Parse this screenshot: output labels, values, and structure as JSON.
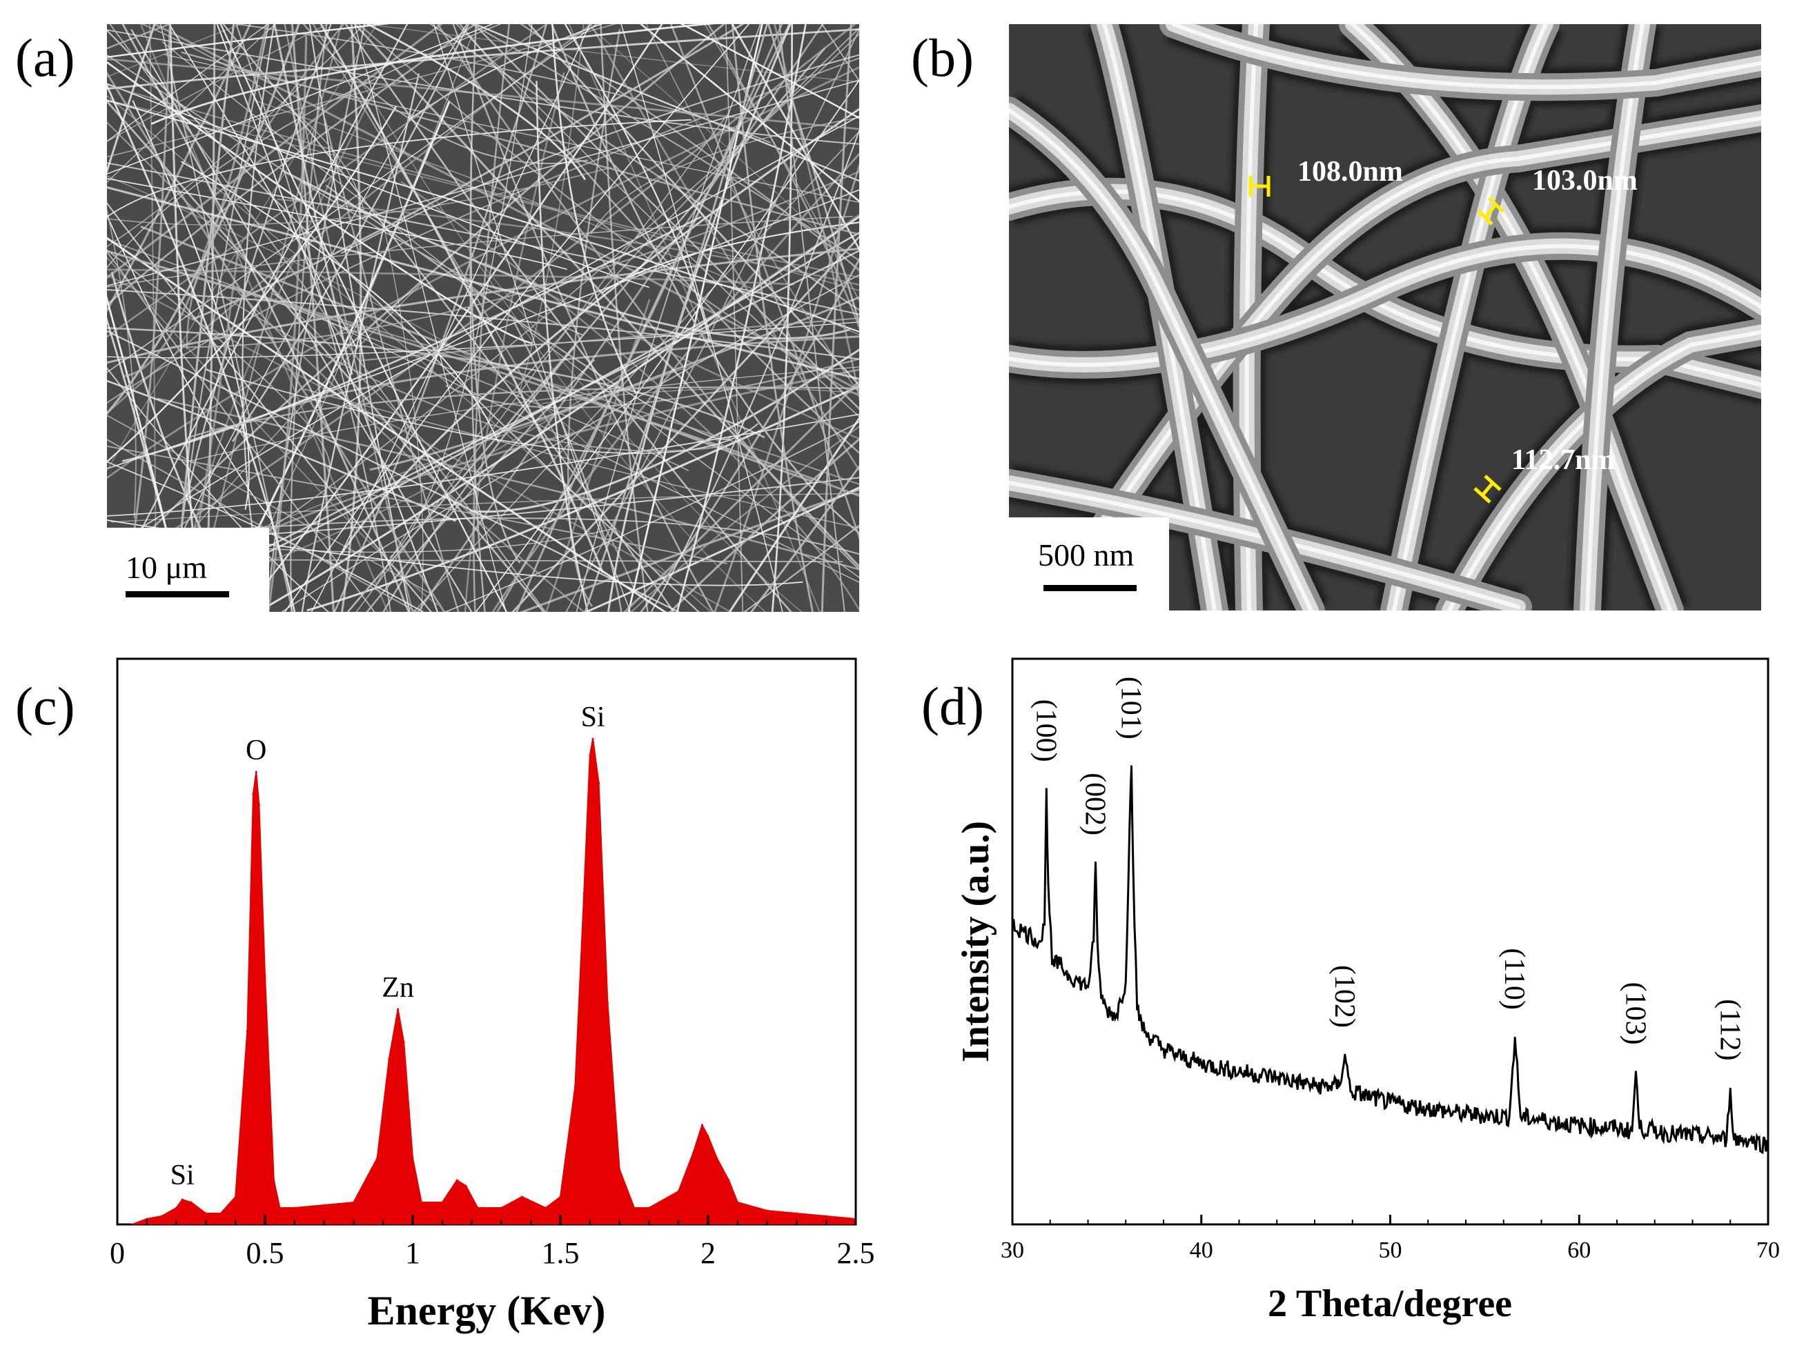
{
  "panels": {
    "a": {
      "label": "(a)",
      "scale_bar": "10 μm"
    },
    "b": {
      "label": "(b)",
      "scale_bar": "500 nm",
      "measurements": [
        "108.0nm",
        "103.0nm",
        "112.7nm"
      ]
    },
    "c": {
      "label": "(c)"
    },
    "d": {
      "label": "(d)"
    }
  },
  "colors": {
    "eds": "#e40000",
    "xrd": "#000000",
    "marker": "#ffee00"
  },
  "chart_data": [
    {
      "id": "c",
      "type": "area",
      "title": "",
      "xlabel": "Energy (Kev)",
      "ylabel": "",
      "xlim": [
        0,
        2.5
      ],
      "ylim": [
        0,
        1.0
      ],
      "xticks": [
        0,
        0.5,
        1,
        1.5,
        2,
        2.5
      ],
      "xtick_labels": [
        "0",
        "0.5",
        "1",
        "1.5",
        "2",
        "2.5"
      ],
      "peaks": [
        {
          "label": "Si",
          "x": 0.22,
          "y": 0.05
        },
        {
          "label": "O",
          "x": 0.47,
          "y": 0.82
        },
        {
          "label": "Zn",
          "x": 0.95,
          "y": 0.39
        },
        {
          "label": "Si",
          "x": 1.61,
          "y": 0.88
        }
      ],
      "x": [
        0.05,
        0.1,
        0.15,
        0.2,
        0.22,
        0.25,
        0.3,
        0.35,
        0.4,
        0.44,
        0.46,
        0.47,
        0.48,
        0.5,
        0.53,
        0.55,
        0.6,
        0.7,
        0.8,
        0.88,
        0.92,
        0.95,
        0.97,
        1.0,
        1.03,
        1.1,
        1.15,
        1.18,
        1.22,
        1.3,
        1.37,
        1.45,
        1.5,
        1.55,
        1.58,
        1.6,
        1.61,
        1.63,
        1.66,
        1.7,
        1.75,
        1.8,
        1.9,
        1.95,
        1.98,
        2.0,
        2.03,
        2.07,
        2.1,
        2.2,
        2.3,
        2.4,
        2.5
      ],
      "y": [
        0.0,
        0.01,
        0.015,
        0.03,
        0.045,
        0.04,
        0.02,
        0.02,
        0.05,
        0.35,
        0.78,
        0.82,
        0.76,
        0.45,
        0.08,
        0.03,
        0.03,
        0.035,
        0.04,
        0.12,
        0.3,
        0.39,
        0.33,
        0.12,
        0.04,
        0.04,
        0.08,
        0.07,
        0.03,
        0.03,
        0.05,
        0.03,
        0.05,
        0.25,
        0.6,
        0.85,
        0.88,
        0.8,
        0.4,
        0.1,
        0.03,
        0.03,
        0.06,
        0.13,
        0.18,
        0.16,
        0.12,
        0.08,
        0.04,
        0.025,
        0.02,
        0.015,
        0.01
      ]
    },
    {
      "id": "d",
      "type": "line",
      "title": "",
      "xlabel": "2 Theta/degree",
      "ylabel": "Intensity (a.u.)",
      "xlim": [
        30,
        70
      ],
      "ylim": [
        0,
        100
      ],
      "xticks": [
        30,
        40,
        50,
        60,
        70
      ],
      "xtick_labels": [
        "30",
        "40",
        "50",
        "60",
        "70"
      ],
      "peak_labels": [
        {
          "label": "(100)",
          "x": 31.8,
          "y": 77
        },
        {
          "label": "(002)",
          "x": 34.4,
          "y": 64
        },
        {
          "label": "(101)",
          "x": 36.3,
          "y": 81
        },
        {
          "label": "(102)",
          "x": 47.6,
          "y": 30
        },
        {
          "label": "(110)",
          "x": 56.6,
          "y": 33
        },
        {
          "label": "(103)",
          "x": 63.0,
          "y": 27
        },
        {
          "label": "(112)",
          "x": 68.0,
          "y": 24
        }
      ],
      "x": [
        30.0,
        30.5,
        31.0,
        31.5,
        31.7,
        31.8,
        31.9,
        32.1,
        32.5,
        33.0,
        33.5,
        34.0,
        34.3,
        34.4,
        34.5,
        34.7,
        35.0,
        35.5,
        36.0,
        36.2,
        36.3,
        36.4,
        36.6,
        37.0,
        38.0,
        39.0,
        40.0,
        42.0,
        44.0,
        46.0,
        47.3,
        47.6,
        47.9,
        49.0,
        50.0,
        52.0,
        54.0,
        56.3,
        56.6,
        56.9,
        58.0,
        60.0,
        62.0,
        62.8,
        63.0,
        63.2,
        65.0,
        67.0,
        67.8,
        68.0,
        68.2,
        69.0,
        70.0
      ],
      "y": [
        53.0,
        52.0,
        51.0,
        50.0,
        53.0,
        77.0,
        60.0,
        46.0,
        46.0,
        44.0,
        43.0,
        42.0,
        50.0,
        64.0,
        50.0,
        40.0,
        38.0,
        37.0,
        43.0,
        70.0,
        81.0,
        62.0,
        38.0,
        34.0,
        31.0,
        29.5,
        28.5,
        27.0,
        26.0,
        24.5,
        24.5,
        30.0,
        23.5,
        22.5,
        21.5,
        20.5,
        19.5,
        19.0,
        33.0,
        19.0,
        18.5,
        17.5,
        17.0,
        16.5,
        27.0,
        17.0,
        16.0,
        15.5,
        15.0,
        24.0,
        15.0,
        15.0,
        14.0
      ]
    }
  ]
}
